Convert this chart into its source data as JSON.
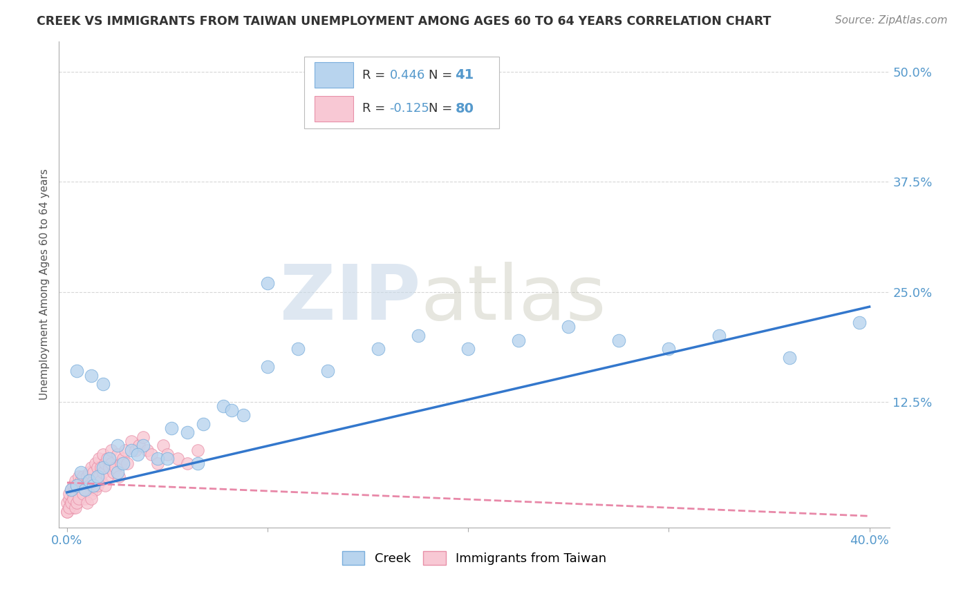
{
  "title": "CREEK VS IMMIGRANTS FROM TAIWAN UNEMPLOYMENT AMONG AGES 60 TO 64 YEARS CORRELATION CHART",
  "source": "Source: ZipAtlas.com",
  "ylabel": "Unemployment Among Ages 60 to 64 years",
  "xlim": [
    -0.004,
    0.41
  ],
  "ylim": [
    -0.018,
    0.535
  ],
  "xticks": [
    0.0,
    0.1,
    0.2,
    0.3,
    0.4
  ],
  "xtick_labels": [
    "0.0%",
    "",
    "",
    "",
    "40.0%"
  ],
  "ytick_labels": [
    "12.5%",
    "25.0%",
    "37.5%",
    "50.0%"
  ],
  "ytick_positions": [
    0.125,
    0.25,
    0.375,
    0.5
  ],
  "background_color": "#ffffff",
  "grid_color": "#cccccc",
  "creek_color": "#b8d4ee",
  "creek_edge_color": "#7aaedc",
  "taiwan_color": "#f8c8d4",
  "taiwan_edge_color": "#e890a8",
  "creek_R": 0.446,
  "creek_N": 41,
  "taiwan_R": -0.125,
  "taiwan_N": 80,
  "creek_line_color": "#3377cc",
  "taiwan_line_color": "#e888a8",
  "legend_creek_label": "Creek",
  "legend_taiwan_label": "Immigrants from Taiwan",
  "creek_line_x0": 0.0,
  "creek_line_y0": 0.022,
  "creek_line_x1": 0.4,
  "creek_line_y1": 0.233,
  "taiwan_line_x0": 0.0,
  "taiwan_line_y0": 0.033,
  "taiwan_line_x1": 0.4,
  "taiwan_line_y1": -0.005,
  "creek_scatter_x": [
    0.002,
    0.005,
    0.007,
    0.009,
    0.011,
    0.013,
    0.015,
    0.018,
    0.021,
    0.025,
    0.028,
    0.032,
    0.038,
    0.045,
    0.052,
    0.06,
    0.068,
    0.078,
    0.088,
    0.1,
    0.115,
    0.13,
    0.155,
    0.175,
    0.2,
    0.225,
    0.25,
    0.275,
    0.3,
    0.325,
    0.36,
    0.395,
    0.005,
    0.012,
    0.018,
    0.025,
    0.035,
    0.05,
    0.065,
    0.082,
    0.1
  ],
  "creek_scatter_y": [
    0.025,
    0.03,
    0.045,
    0.025,
    0.035,
    0.03,
    0.04,
    0.05,
    0.06,
    0.045,
    0.055,
    0.07,
    0.075,
    0.06,
    0.095,
    0.09,
    0.1,
    0.12,
    0.11,
    0.165,
    0.185,
    0.16,
    0.185,
    0.2,
    0.185,
    0.195,
    0.21,
    0.195,
    0.185,
    0.2,
    0.175,
    0.215,
    0.16,
    0.155,
    0.145,
    0.075,
    0.065,
    0.06,
    0.055,
    0.115,
    0.26
  ],
  "taiwan_scatter_x": [
    0.0,
    0.0,
    0.001,
    0.001,
    0.001,
    0.002,
    0.002,
    0.002,
    0.003,
    0.003,
    0.003,
    0.004,
    0.004,
    0.004,
    0.005,
    0.005,
    0.005,
    0.006,
    0.006,
    0.007,
    0.007,
    0.008,
    0.008,
    0.009,
    0.009,
    0.01,
    0.01,
    0.011,
    0.011,
    0.012,
    0.012,
    0.013,
    0.013,
    0.014,
    0.014,
    0.015,
    0.015,
    0.016,
    0.016,
    0.017,
    0.017,
    0.018,
    0.018,
    0.019,
    0.019,
    0.02,
    0.02,
    0.021,
    0.022,
    0.022,
    0.023,
    0.024,
    0.025,
    0.026,
    0.027,
    0.028,
    0.029,
    0.03,
    0.032,
    0.034,
    0.036,
    0.038,
    0.04,
    0.042,
    0.045,
    0.048,
    0.05,
    0.055,
    0.06,
    0.065,
    0.0,
    0.001,
    0.002,
    0.003,
    0.004,
    0.005,
    0.006,
    0.008,
    0.01,
    0.012
  ],
  "taiwan_scatter_y": [
    0.0,
    0.01,
    0.015,
    0.005,
    0.02,
    0.01,
    0.025,
    0.005,
    0.02,
    0.03,
    0.005,
    0.015,
    0.025,
    0.035,
    0.01,
    0.02,
    0.03,
    0.025,
    0.04,
    0.02,
    0.035,
    0.025,
    0.04,
    0.015,
    0.03,
    0.025,
    0.04,
    0.03,
    0.045,
    0.02,
    0.05,
    0.035,
    0.045,
    0.025,
    0.055,
    0.03,
    0.05,
    0.04,
    0.06,
    0.035,
    0.05,
    0.045,
    0.065,
    0.03,
    0.055,
    0.04,
    0.06,
    0.05,
    0.055,
    0.07,
    0.045,
    0.05,
    0.065,
    0.04,
    0.055,
    0.06,
    0.07,
    0.055,
    0.08,
    0.07,
    0.075,
    0.085,
    0.07,
    0.065,
    0.055,
    0.075,
    0.065,
    0.06,
    0.055,
    0.07,
    0.0,
    0.005,
    0.01,
    0.015,
    0.005,
    0.01,
    0.015,
    0.02,
    0.01,
    0.015
  ]
}
